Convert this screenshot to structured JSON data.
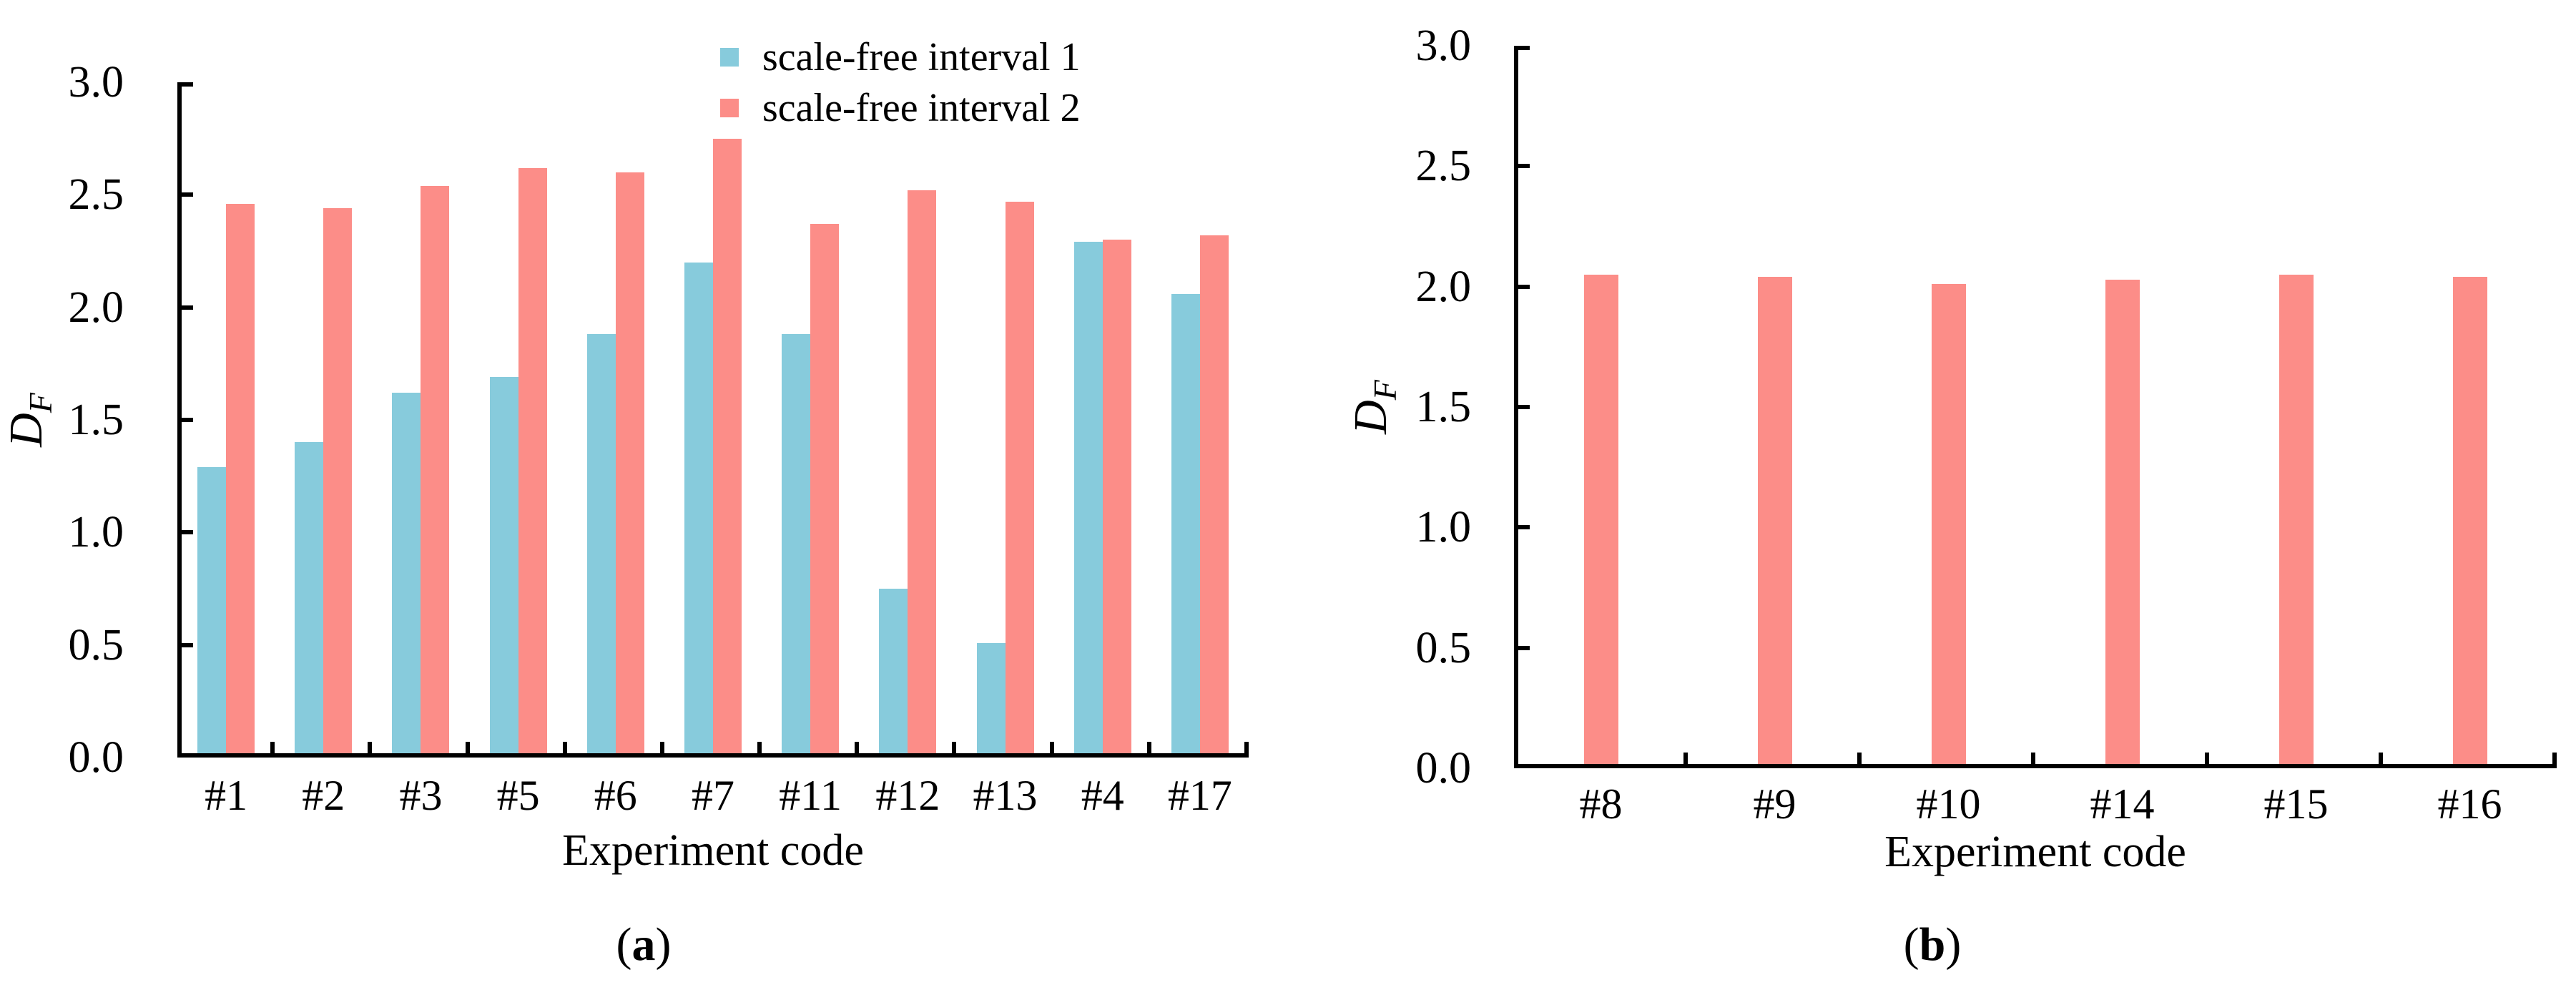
{
  "figure": {
    "background": "#ffffff",
    "axis_color": "#000000",
    "captions": [
      {
        "open": "(",
        "letter": "a",
        "close": ")"
      },
      {
        "open": "(",
        "letter": "b",
        "close": ")"
      }
    ]
  },
  "chart_data": [
    {
      "type": "bar",
      "panel": "a",
      "title": "",
      "categories": [
        "#1",
        "#2",
        "#3",
        "#5",
        "#6",
        "#7",
        "#11",
        "#12",
        "#13",
        "#4",
        "#17"
      ],
      "series": [
        {
          "name": "scale-free interval 1",
          "color": "#87CBDC",
          "values": [
            1.29,
            1.4,
            1.62,
            1.69,
            1.88,
            2.2,
            1.88,
            0.75,
            0.51,
            2.29,
            2.06
          ]
        },
        {
          "name": "scale-free interval 2",
          "color": "#FC8D88",
          "values": [
            2.46,
            2.44,
            2.54,
            2.62,
            2.6,
            2.75,
            2.37,
            2.52,
            2.47,
            2.3,
            2.32
          ]
        }
      ],
      "xlabel": "Experiment code",
      "ylabel": "D_F",
      "ylabel_parts": {
        "base": "D",
        "sub": "F"
      },
      "ylim": [
        0,
        3
      ],
      "ytick_step": 0.5,
      "ytick_labels": [
        "0.0",
        "0.5",
        "1.0",
        "1.5",
        "2.0",
        "2.5",
        "3.0"
      ],
      "grid": false,
      "legend_position": "top-inside-right"
    },
    {
      "type": "bar",
      "panel": "b",
      "title": "",
      "categories": [
        "#8",
        "#9",
        "#10",
        "#14",
        "#15",
        "#16"
      ],
      "series": [
        {
          "name": "scale-free interval 2",
          "color": "#FC8D88",
          "values": [
            2.05,
            2.04,
            2.01,
            2.03,
            2.05,
            2.04
          ]
        }
      ],
      "xlabel": "Experiment code",
      "ylabel": "D_F",
      "ylabel_parts": {
        "base": "D",
        "sub": "F"
      },
      "ylim": [
        0,
        3
      ],
      "ytick_step": 0.5,
      "ytick_labels": [
        "0.0",
        "0.5",
        "1.0",
        "1.5",
        "2.0",
        "2.5",
        "3.0"
      ],
      "grid": false,
      "legend_position": "none"
    }
  ]
}
